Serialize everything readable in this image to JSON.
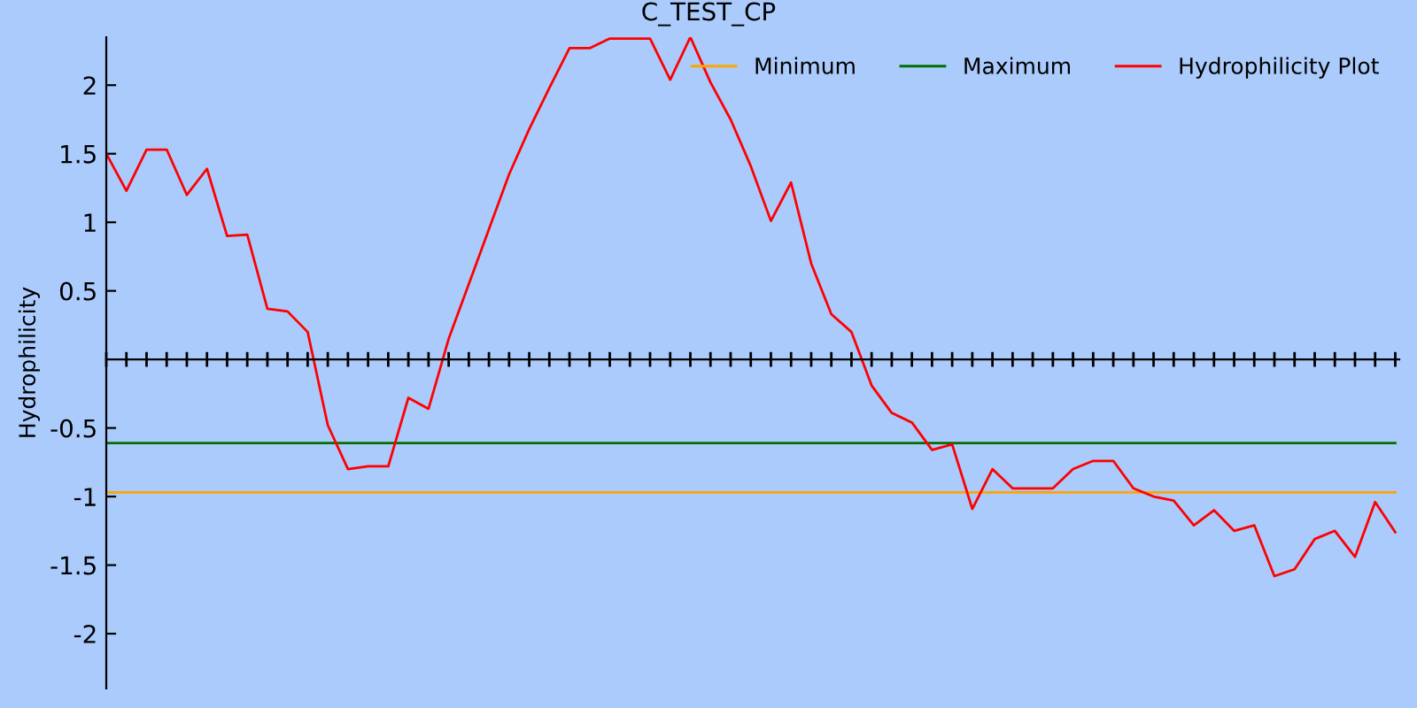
{
  "chart_data": {
    "type": "line",
    "title": "C_TEST_CP",
    "ylabel": "Hydrophilicity",
    "categories": [
      null,
      null,
      null,
      null,
      null,
      null,
      null,
      null,
      null,
      null,
      null,
      null,
      null,
      null,
      null,
      null,
      null,
      null,
      null,
      null,
      null,
      null,
      null,
      null,
      null,
      null,
      null,
      null,
      null,
      null,
      null,
      null,
      null,
      null,
      null,
      null,
      null,
      null,
      null,
      null,
      null,
      null,
      null,
      null,
      null,
      null,
      null,
      null,
      null,
      null,
      null,
      null,
      null,
      null,
      null,
      null,
      null,
      null,
      null,
      null,
      null,
      null,
      null,
      null,
      null
    ],
    "series": [
      {
        "name": "Minimum",
        "color": "#ffa500",
        "values": [
          -0.97,
          -0.97,
          -0.97,
          -0.97,
          -0.97,
          -0.97,
          -0.97,
          -0.97,
          -0.97,
          -0.97,
          -0.97,
          -0.97,
          -0.97,
          -0.97,
          -0.97,
          -0.97,
          -0.97,
          -0.97,
          -0.97,
          -0.97,
          -0.97,
          -0.97,
          -0.97,
          -0.97,
          -0.97,
          -0.97,
          -0.97,
          -0.97,
          -0.97,
          -0.97,
          -0.97,
          -0.97,
          -0.97,
          -0.97,
          -0.97,
          -0.97,
          -0.97,
          -0.97,
          -0.97,
          -0.97,
          -0.97,
          -0.97,
          -0.97,
          -0.97,
          -0.97,
          -0.97,
          -0.97,
          -0.97,
          -0.97,
          -0.97,
          -0.97,
          -0.97,
          -0.97,
          -0.97,
          -0.97,
          -0.97,
          -0.97,
          -0.97,
          -0.97,
          -0.97,
          -0.97,
          -0.97,
          -0.97,
          -0.97,
          -0.97
        ]
      },
      {
        "name": "Maximum",
        "color": "#007000",
        "values": [
          -0.61,
          -0.61,
          -0.61,
          -0.61,
          -0.61,
          -0.61,
          -0.61,
          -0.61,
          -0.61,
          -0.61,
          -0.61,
          -0.61,
          -0.61,
          -0.61,
          -0.61,
          -0.61,
          -0.61,
          -0.61,
          -0.61,
          -0.61,
          -0.61,
          -0.61,
          -0.61,
          -0.61,
          -0.61,
          -0.61,
          -0.61,
          -0.61,
          -0.61,
          -0.61,
          -0.61,
          -0.61,
          -0.61,
          -0.61,
          -0.61,
          -0.61,
          -0.61,
          -0.61,
          -0.61,
          -0.61,
          -0.61,
          -0.61,
          -0.61,
          -0.61,
          -0.61,
          -0.61,
          -0.61,
          -0.61,
          -0.61,
          -0.61,
          -0.61,
          -0.61,
          -0.61,
          -0.61,
          -0.61,
          -0.61,
          -0.61,
          -0.61,
          -0.61,
          -0.61,
          -0.61,
          -0.61,
          -0.61,
          -0.61,
          -0.61
        ]
      },
      {
        "name": "Hydrophilicity Plot",
        "color": "#ff0000",
        "values": [
          1.5,
          1.23,
          1.53,
          1.53,
          1.2,
          1.39,
          0.9,
          0.91,
          0.37,
          0.35,
          0.2,
          -0.48,
          -0.8,
          -0.78,
          -0.78,
          -0.28,
          -0.36,
          0.15,
          0.55,
          0.95,
          1.35,
          1.68,
          1.98,
          2.27,
          2.27,
          2.34,
          2.34,
          2.34,
          2.04,
          2.35,
          2.02,
          1.75,
          1.41,
          1.01,
          1.29,
          0.7,
          0.33,
          0.2,
          -0.19,
          -0.39,
          -0.46,
          -0.66,
          -0.62,
          -1.09,
          -0.8,
          -0.94,
          -0.94,
          -0.94,
          -0.8,
          -0.74,
          -0.74,
          -0.94,
          -1.0,
          -1.03,
          -1.21,
          -1.1,
          -1.25,
          -1.21,
          -1.58,
          -1.53,
          -1.31,
          -1.25,
          -1.44,
          -1.04,
          -1.26
        ]
      }
    ],
    "ylim": [
      -2.4,
      2.35
    ],
    "yticks": [
      {
        "value": -2,
        "label": "-2"
      },
      {
        "value": -1.5,
        "label": "-1.5"
      },
      {
        "value": -1,
        "label": "-1"
      },
      {
        "value": -0.5,
        "label": "-0.5"
      },
      0.5,
      1,
      1.5,
      2
    ],
    "tick_labels": "y",
    "grid": false,
    "legend": "top right",
    "marker": "none",
    "line_style": "solid"
  }
}
